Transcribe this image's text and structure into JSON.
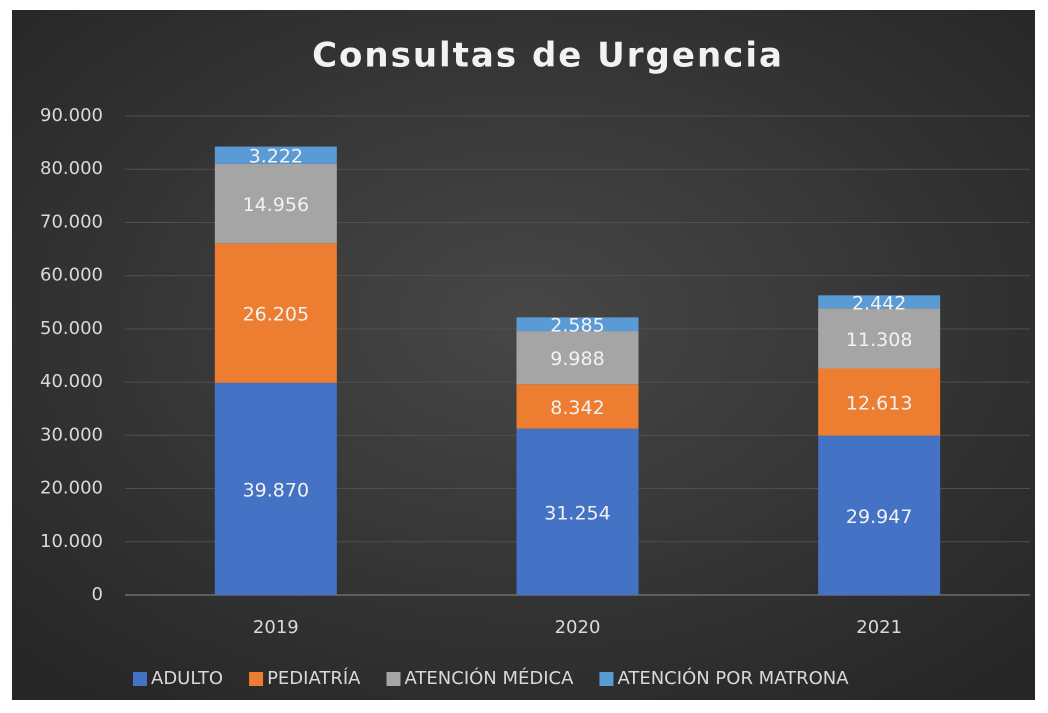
{
  "chart_data": {
    "type": "stacked_bar",
    "title": "Consultas de Urgencia",
    "categories": [
      "2019",
      "2020",
      "2021"
    ],
    "series": [
      {
        "name": "ADULTO",
        "color": "#4472c4",
        "values": [
          39870,
          31254,
          29947
        ],
        "value_labels": [
          "39.870",
          "31.254",
          "29.947"
        ]
      },
      {
        "name": "PEDIATRÍA",
        "color": "#ed7d31",
        "values": [
          26205,
          8342,
          12613
        ],
        "value_labels": [
          "26.205",
          "8.342",
          "12.613"
        ]
      },
      {
        "name": "ATENCIÓN MÉDICA",
        "color": "#a5a5a5",
        "values": [
          14956,
          9988,
          11308
        ],
        "value_labels": [
          "14.956",
          "9.988",
          "11.308"
        ]
      },
      {
        "name": "ATENCIÓN POR MATRONA",
        "color": "#5b9bd5",
        "values": [
          3222,
          2585,
          2442
        ],
        "value_labels": [
          "3.222",
          "2.585",
          "2.442"
        ]
      }
    ],
    "ylim": [
      0,
      90000
    ],
    "yticks": [
      0,
      {
        "value": 10000,
        "label": "10.000"
      },
      {
        "value": 20000,
        "label": "20.000"
      },
      {
        "value": 30000,
        "label": "30.000"
      },
      {
        "value": 40000,
        "label": "40.000"
      },
      {
        "value": 50000,
        "label": "50.000"
      },
      {
        "value": 60000,
        "label": "60.000"
      },
      {
        "value": 70000,
        "label": "70.000"
      },
      {
        "value": 80000,
        "label": "80.000"
      },
      {
        "value": 90000,
        "label": "90.000"
      }
    ],
    "grid": true,
    "legend": "bottom"
  }
}
